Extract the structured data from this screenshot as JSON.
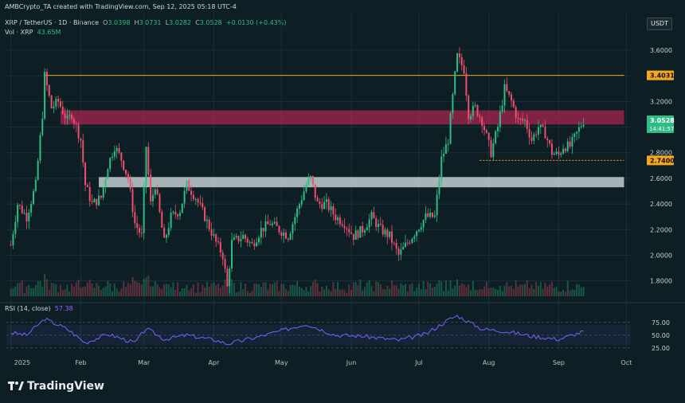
{
  "header": {
    "credit": "AMBCrypto_TA created with TradingView.com, Sep 12, 2025 05:18 UTC-4",
    "symbol": "XRP / TetherUS · 1D · Binance",
    "open_label": "O",
    "open": "3.0398",
    "high_label": "H",
    "high": "3.0731",
    "low_label": "L",
    "low": "3.0282",
    "close_label": "C",
    "close": "3.0528",
    "change": "+0.0130 (+0.43%)",
    "vol_label": "Vol · XRP",
    "vol_value": "43.65M",
    "rsi_label": "RSI (14, close)",
    "rsi_value": "57.38",
    "unit": "USDT",
    "logo_text": "TradingView",
    "countdown": "14:41:57"
  },
  "colors": {
    "bg": "#0d1f24",
    "up": "#2ebd85",
    "down": "#f0506e",
    "resistance_zone": "#e0245e",
    "support_zone": "#cfd8dc",
    "level_line": "#f5a623",
    "rsi_line": "#7b61ff",
    "grid": "#1a3036"
  },
  "chart_data": {
    "type": "candlestick",
    "title": "",
    "price_axis": {
      "ylim": [
        1.68,
        3.73
      ],
      "ticks": [
        1.8,
        2.0,
        2.2,
        2.4,
        2.6,
        2.8,
        3.0,
        3.2,
        3.4,
        3.6
      ]
    },
    "time_axis": {
      "labels": [
        "2025",
        "Feb",
        "Mar",
        "Apr",
        "May",
        "Jun",
        "Jul",
        "Aug",
        "Sep",
        "Oct"
      ],
      "range": [
        "2024-12-30",
        "2025-10-03"
      ]
    },
    "price_labels": [
      {
        "value": 3.4031,
        "text": "3.4031",
        "color": "#f5a623"
      },
      {
        "value": 3.0528,
        "text": "3.0528",
        "color": "#2ebd85"
      },
      {
        "value": 2.74,
        "text": "2.7400",
        "color": "#f5a623"
      }
    ],
    "horizontal_lines": [
      {
        "value": 3.4031,
        "from": "2025-01-16",
        "to": "2025-09-30"
      },
      {
        "value": 2.74,
        "from": "2025-07-28",
        "to": "2025-09-30"
      }
    ],
    "zones": [
      {
        "name": "resistance",
        "low": 3.02,
        "high": 3.13,
        "from": "2025-01-23",
        "to": "2025-09-30",
        "color": "#e0245e"
      },
      {
        "name": "support",
        "low": 2.53,
        "high": 2.61,
        "from": "2025-02-09",
        "to": "2025-09-30",
        "color": "#cfd8dc"
      }
    ],
    "price_path": [
      [
        "2025-01-01",
        2.08
      ],
      [
        "2025-01-04",
        2.4
      ],
      [
        "2025-01-08",
        2.3
      ],
      [
        "2025-01-12",
        2.55
      ],
      [
        "2025-01-15",
        3.1
      ],
      [
        "2025-01-16",
        3.4
      ],
      [
        "2025-01-19",
        3.15
      ],
      [
        "2025-01-22",
        3.2
      ],
      [
        "2025-01-26",
        3.05
      ],
      [
        "2025-01-28",
        3.1
      ],
      [
        "2025-02-01",
        2.9
      ],
      [
        "2025-02-03",
        2.55
      ],
      [
        "2025-02-06",
        2.4
      ],
      [
        "2025-02-10",
        2.45
      ],
      [
        "2025-02-13",
        2.7
      ],
      [
        "2025-02-16",
        2.85
      ],
      [
        "2025-02-19",
        2.75
      ],
      [
        "2025-02-22",
        2.6
      ],
      [
        "2025-02-25",
        2.25
      ],
      [
        "2025-02-28",
        2.15
      ],
      [
        "2025-03-02",
        2.85
      ],
      [
        "2025-03-04",
        2.4
      ],
      [
        "2025-03-06",
        2.55
      ],
      [
        "2025-03-10",
        2.1
      ],
      [
        "2025-03-13",
        2.3
      ],
      [
        "2025-03-17",
        2.35
      ],
      [
        "2025-03-20",
        2.55
      ],
      [
        "2025-03-24",
        2.45
      ],
      [
        "2025-03-28",
        2.3
      ],
      [
        "2025-04-02",
        2.1
      ],
      [
        "2025-04-05",
        2.0
      ],
      [
        "2025-04-07",
        1.75
      ],
      [
        "2025-04-09",
        2.1
      ],
      [
        "2025-04-14",
        2.15
      ],
      [
        "2025-04-18",
        2.08
      ],
      [
        "2025-04-22",
        2.2
      ],
      [
        "2025-04-26",
        2.25
      ],
      [
        "2025-04-30",
        2.2
      ],
      [
        "2025-05-04",
        2.15
      ],
      [
        "2025-05-08",
        2.35
      ],
      [
        "2025-05-12",
        2.55
      ],
      [
        "2025-05-14",
        2.6
      ],
      [
        "2025-05-17",
        2.4
      ],
      [
        "2025-05-21",
        2.4
      ],
      [
        "2025-05-25",
        2.3
      ],
      [
        "2025-05-29",
        2.25
      ],
      [
        "2025-06-02",
        2.15
      ],
      [
        "2025-06-06",
        2.2
      ],
      [
        "2025-06-10",
        2.3
      ],
      [
        "2025-06-14",
        2.2
      ],
      [
        "2025-06-18",
        2.15
      ],
      [
        "2025-06-22",
        2.0
      ],
      [
        "2025-06-26",
        2.1
      ],
      [
        "2025-06-30",
        2.2
      ],
      [
        "2025-07-04",
        2.3
      ],
      [
        "2025-07-08",
        2.3
      ],
      [
        "2025-07-11",
        2.75
      ],
      [
        "2025-07-14",
        2.9
      ],
      [
        "2025-07-17",
        3.4
      ],
      [
        "2025-07-18",
        3.55
      ],
      [
        "2025-07-21",
        3.45
      ],
      [
        "2025-07-23",
        3.1
      ],
      [
        "2025-07-26",
        3.15
      ],
      [
        "2025-07-29",
        3.05
      ],
      [
        "2025-08-02",
        2.8
      ],
      [
        "2025-08-05",
        3.0
      ],
      [
        "2025-08-08",
        3.3
      ],
      [
        "2025-08-11",
        3.2
      ],
      [
        "2025-08-14",
        3.05
      ],
      [
        "2025-08-17",
        3.05
      ],
      [
        "2025-08-20",
        2.9
      ],
      [
        "2025-08-23",
        3.0
      ],
      [
        "2025-08-26",
        2.95
      ],
      [
        "2025-08-29",
        2.8
      ],
      [
        "2025-09-01",
        2.78
      ],
      [
        "2025-09-03",
        2.85
      ],
      [
        "2025-09-06",
        2.85
      ],
      [
        "2025-09-09",
        2.95
      ],
      [
        "2025-09-12",
        3.05
      ]
    ],
    "rsi": {
      "ylim": [
        20,
        95
      ],
      "levels": [
        75.0,
        50.0,
        25.0
      ],
      "band": [
        30,
        70
      ],
      "path": [
        [
          "2025-01-01",
          55
        ],
        [
          "2025-01-08",
          50
        ],
        [
          "2025-01-16",
          82
        ],
        [
          "2025-01-26",
          62
        ],
        [
          "2025-02-03",
          35
        ],
        [
          "2025-02-13",
          52
        ],
        [
          "2025-02-25",
          35
        ],
        [
          "2025-03-02",
          63
        ],
        [
          "2025-03-10",
          42
        ],
        [
          "2025-03-20",
          50
        ],
        [
          "2025-04-02",
          40
        ],
        [
          "2025-04-07",
          33
        ],
        [
          "2025-04-22",
          48
        ],
        [
          "2025-05-12",
          72
        ],
        [
          "2025-05-25",
          50
        ],
        [
          "2025-06-06",
          48
        ],
        [
          "2025-06-22",
          40
        ],
        [
          "2025-07-04",
          52
        ],
        [
          "2025-07-14",
          80
        ],
        [
          "2025-07-18",
          88
        ],
        [
          "2025-07-29",
          62
        ],
        [
          "2025-08-08",
          58
        ],
        [
          "2025-08-20",
          48
        ],
        [
          "2025-09-01",
          42
        ],
        [
          "2025-09-12",
          57
        ]
      ]
    }
  }
}
